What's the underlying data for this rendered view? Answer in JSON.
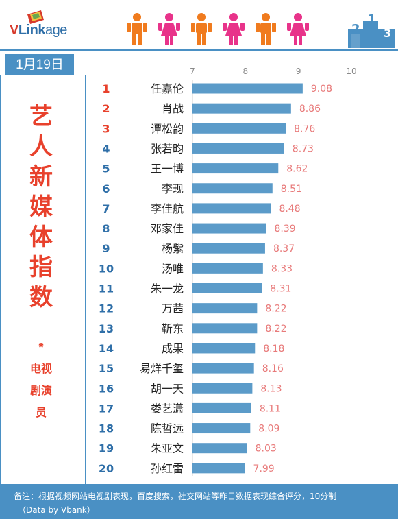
{
  "header": {
    "logo_v": "V",
    "logo_link": "Link",
    "logo_age": "age",
    "colors": {
      "male": "#f07b1e",
      "female": "#e8338a",
      "brand_blue": "#4a90c4",
      "accent_red": "#e8412c"
    },
    "podium_labels": [
      "2",
      "1",
      "3"
    ]
  },
  "date": "1月19日",
  "title": "艺人新媒体指数",
  "title_star": "*",
  "subtitle": "电视剧演员",
  "footer": {
    "line1": "备注：根据视频网站电视剧表现，百度搜索，社交网站等昨日数据表现综合评分，10分制",
    "line2": "（Data by Vbank）"
  },
  "chart_data": {
    "type": "bar",
    "orientation": "horizontal",
    "xlim": [
      7,
      10
    ],
    "ticks": [
      7,
      8,
      9,
      10
    ],
    "grid": false,
    "bar_color": "#5b9bc9",
    "value_label_color": "#e87a7a",
    "rank_color": "#e8412c",
    "rank_color_alt": "#2f6fa8",
    "ranks": [
      1,
      2,
      3,
      4,
      5,
      6,
      7,
      8,
      9,
      10,
      11,
      12,
      13,
      14,
      15,
      16,
      17,
      18,
      19,
      20
    ],
    "categories": [
      "任嘉伦",
      "肖战",
      "谭松韵",
      "张若昀",
      "王一博",
      "李现",
      "李佳航",
      "邓家佳",
      "杨紫",
      "汤唯",
      "朱一龙",
      "万茜",
      "靳东",
      "成果",
      "易烊千玺",
      "胡一天",
      "娄艺潇",
      "陈哲远",
      "朱亚文",
      "孙红雷"
    ],
    "values": [
      9.08,
      8.86,
      8.76,
      8.73,
      8.62,
      8.51,
      8.48,
      8.39,
      8.37,
      8.33,
      8.31,
      8.22,
      8.22,
      8.18,
      8.16,
      8.13,
      8.11,
      8.09,
      8.03,
      7.99
    ],
    "value_labels": [
      "9.08",
      "8.86",
      "8.76",
      "8.73",
      "8.62",
      "8.51",
      "8.48",
      "8.39",
      "8.37",
      "8.33",
      "8.31",
      "8.22",
      "8.22",
      "8.18",
      "8.16",
      "8.13",
      "8.11",
      "8.09",
      "8.03",
      "7.99"
    ]
  }
}
